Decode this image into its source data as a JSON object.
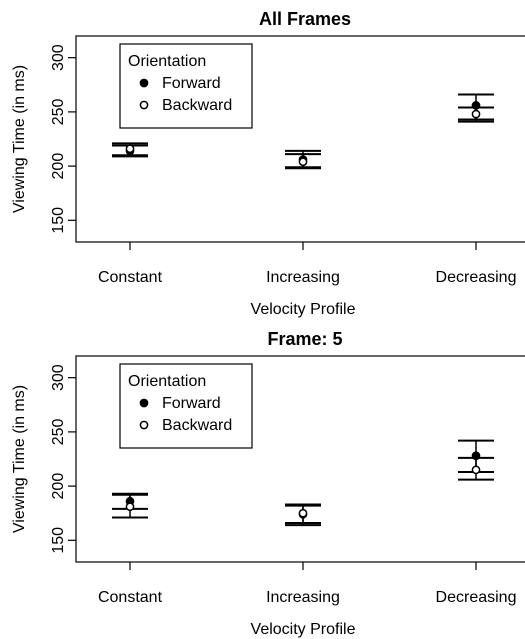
{
  "chart_data": [
    {
      "type": "scatter",
      "title": "All Frames",
      "xlabel": "Velocity Profile",
      "ylabel": "Viewing Time (in ms)",
      "categories": [
        "Constant",
        "Increasing",
        "Decreasing"
      ],
      "ylim": [
        130,
        320
      ],
      "yticks": [
        150,
        200,
        250,
        300
      ],
      "legend": {
        "title": "Orientation",
        "position": "top-left"
      },
      "series": [
        {
          "name": "Forward",
          "marker": "filled-circle",
          "values": [
            214,
            206,
            256
          ],
          "ci_low": [
            209,
            198,
            243
          ],
          "ci_high": [
            219,
            214,
            266
          ]
        },
        {
          "name": "Backward",
          "marker": "open-circle",
          "values": [
            216,
            204,
            248
          ],
          "ci_low": [
            210,
            199,
            241
          ],
          "ci_high": [
            221,
            211,
            254
          ]
        }
      ]
    },
    {
      "type": "scatter",
      "title": "Frame: 5",
      "xlabel": "Velocity Profile",
      "ylabel": "Viewing Time (in ms)",
      "categories": [
        "Constant",
        "Increasing",
        "Decreasing"
      ],
      "ylim": [
        130,
        320
      ],
      "yticks": [
        150,
        200,
        250,
        300
      ],
      "legend": {
        "title": "Orientation",
        "position": "top-left"
      },
      "series": [
        {
          "name": "Forward",
          "marker": "filled-circle",
          "values": [
            186,
            174,
            228
          ],
          "ci_low": [
            179,
            166,
            213
          ],
          "ci_high": [
            193,
            183,
            242
          ]
        },
        {
          "name": "Backward",
          "marker": "open-circle",
          "values": [
            181,
            175,
            215
          ],
          "ci_low": [
            171,
            164,
            206
          ],
          "ci_high": [
            192,
            182,
            226
          ]
        }
      ]
    }
  ]
}
